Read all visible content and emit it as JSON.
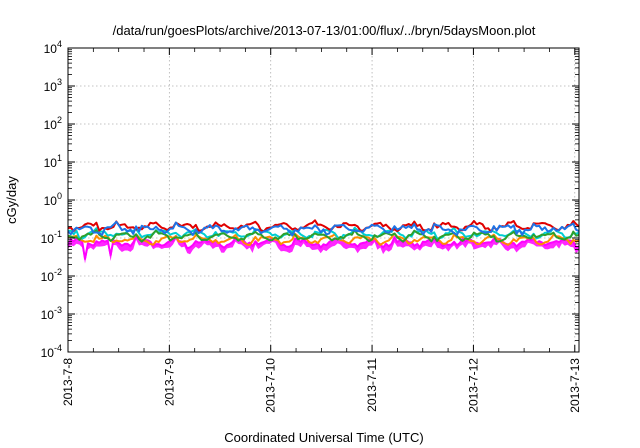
{
  "chart_data": {
    "type": "line",
    "title": "/data/run/goesPlots/archive/2013-07-13/01:00/flux/../bryn/5daysMoon.plot",
    "xlabel": "Coordinated Universal Time (UTC)",
    "ylabel": "cGy/day",
    "yscale": "log",
    "ylim": [
      0.0001,
      10000
    ],
    "xlim": [
      "2013-07-08",
      "2013-07-13 01:00"
    ],
    "grid": true,
    "legend": "none",
    "y_ticks": [
      {
        "base": "10",
        "exp": "-4"
      },
      {
        "base": "10",
        "exp": "-3"
      },
      {
        "base": "10",
        "exp": "-2"
      },
      {
        "base": "10",
        "exp": "-1"
      },
      {
        "base": "10",
        "exp": "0"
      },
      {
        "base": "10",
        "exp": "1"
      },
      {
        "base": "10",
        "exp": "2"
      },
      {
        "base": "10",
        "exp": "3"
      },
      {
        "base": "10",
        "exp": "4"
      }
    ],
    "x_ticks": [
      "2013-7-8",
      "2013-7-9",
      "2013-7-10",
      "2013-7-11",
      "2013-7-12",
      "2013-7-13"
    ],
    "series": [
      {
        "color": "#ff00ff",
        "level": 0.075,
        "noise": 0.14,
        "minima": [
          {
            "x": "2013-07-08 04:00",
            "y": 0.028
          },
          {
            "x": "2013-07-08 10:00",
            "y": 0.035
          }
        ],
        "fill": true
      },
      {
        "color": "#ff8c00",
        "level": 0.09,
        "noise": 0.1
      },
      {
        "color": "#00ced1",
        "level": 0.13,
        "noise": 0.1
      },
      {
        "color": "#2ca02c",
        "level": 0.11,
        "noise": 0.1
      },
      {
        "color": "#e00000",
        "level": 0.2,
        "noise": 0.12
      },
      {
        "color": "#1e73e6",
        "level": 0.17,
        "noise": 0.16
      }
    ]
  }
}
